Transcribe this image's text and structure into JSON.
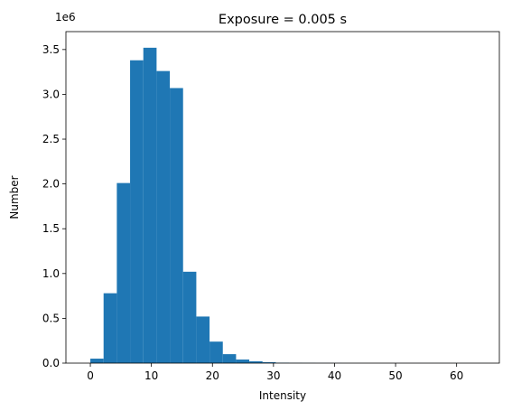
{
  "chart_data": {
    "type": "bar",
    "title": "Exposure = 0.005 s",
    "xlabel": "Intensity",
    "ylabel": "Number",
    "y_scale_label": "1e6",
    "xlim": [
      -4,
      67
    ],
    "ylim": [
      0,
      3.7
    ],
    "x_ticks": [
      0,
      10,
      20,
      30,
      40,
      50,
      60
    ],
    "y_ticks": [
      0.0,
      0.5,
      1.0,
      1.5,
      2.0,
      2.5,
      3.0,
      3.5
    ],
    "x_tick_labels": [
      "0",
      "10",
      "20",
      "30",
      "40",
      "50",
      "60"
    ],
    "y_tick_labels": [
      "0.0",
      "0.5",
      "1.0",
      "1.5",
      "2.0",
      "2.5",
      "3.0",
      "3.5"
    ],
    "bin_width": 2.17,
    "bin_edges_start": 0,
    "values": [
      0.05,
      0.78,
      2.01,
      3.38,
      3.52,
      3.26,
      3.07,
      1.02,
      0.52,
      0.24,
      0.1,
      0.04,
      0.02,
      0.01,
      0.005,
      0.003,
      0.002,
      0.001,
      0.001,
      0.0005,
      0.0005,
      0.0003,
      0.0003,
      0.0002,
      0.0002,
      0.0001,
      0.0001,
      0.0001,
      0.0001,
      0.0001
    ],
    "grid": false,
    "bar_color": "#1f77b4"
  }
}
